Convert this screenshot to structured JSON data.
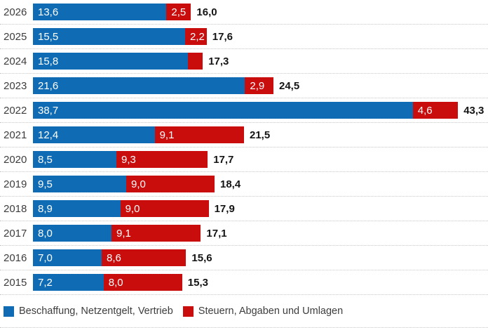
{
  "chart_data": {
    "type": "bar",
    "orientation": "horizontal",
    "stacked": true,
    "title": "",
    "xlabel": "",
    "ylabel": "",
    "grid": false,
    "legend_position": "bottom",
    "xlim": [
      0,
      46
    ],
    "categories": [
      "2026",
      "2025",
      "2024",
      "2023",
      "2022",
      "2021",
      "2020",
      "2019",
      "2018",
      "2017",
      "2016",
      "2015"
    ],
    "series": [
      {
        "name": "Beschaffung, Netzentgelt, Vertrieb",
        "color": "#0f6cb4",
        "values": [
          13.6,
          15.5,
          15.8,
          21.6,
          38.7,
          12.4,
          8.5,
          9.5,
          8.9,
          8.0,
          7.0,
          7.2
        ]
      },
      {
        "name": "Steuern, Abgaben und Umlagen",
        "color": "#c90d0d",
        "values": [
          2.5,
          2.2,
          1.5,
          2.9,
          4.6,
          9.1,
          9.3,
          9.0,
          9.0,
          9.1,
          8.6,
          8.0
        ]
      }
    ],
    "totals": [
      16.0,
      17.6,
      17.3,
      24.5,
      43.3,
      21.5,
      17.7,
      18.4,
      17.9,
      17.1,
      15.6,
      15.3
    ]
  },
  "rows": [
    {
      "year": "2026",
      "blue": 13.6,
      "red": 2.5,
      "blue_label": "13,6",
      "red_label": "2,5",
      "total_label": "16,0"
    },
    {
      "year": "2025",
      "blue": 15.5,
      "red": 2.2,
      "blue_label": "15,5",
      "red_label": "2,2",
      "total_label": "17,6"
    },
    {
      "year": "2024",
      "blue": 15.8,
      "red": 1.5,
      "blue_label": "15,8",
      "red_label": "",
      "total_label": "17,3"
    },
    {
      "year": "2023",
      "blue": 21.6,
      "red": 2.9,
      "blue_label": "21,6",
      "red_label": "2,9",
      "total_label": "24,5"
    },
    {
      "year": "2022",
      "blue": 38.7,
      "red": 4.6,
      "blue_label": "38,7",
      "red_label": "4,6",
      "total_label": "43,3"
    },
    {
      "year": "2021",
      "blue": 12.4,
      "red": 9.1,
      "blue_label": "12,4",
      "red_label": "9,1",
      "total_label": "21,5"
    },
    {
      "year": "2020",
      "blue": 8.5,
      "red": 9.3,
      "blue_label": "8,5",
      "red_label": "9,3",
      "total_label": "17,7"
    },
    {
      "year": "2019",
      "blue": 9.5,
      "red": 9.0,
      "blue_label": "9,5",
      "red_label": "9,0",
      "total_label": "18,4"
    },
    {
      "year": "2018",
      "blue": 8.9,
      "red": 9.0,
      "blue_label": "8,9",
      "red_label": "9,0",
      "total_label": "17,9"
    },
    {
      "year": "2017",
      "blue": 8.0,
      "red": 9.1,
      "blue_label": "8,0",
      "red_label": "9,1",
      "total_label": "17,1"
    },
    {
      "year": "2016",
      "blue": 7.0,
      "red": 8.6,
      "blue_label": "7,0",
      "red_label": "8,6",
      "total_label": "15,6"
    },
    {
      "year": "2015",
      "blue": 7.2,
      "red": 8.0,
      "blue_label": "7,2",
      "red_label": "8,0",
      "total_label": "15,3"
    }
  ],
  "legend": {
    "items": [
      {
        "label": "Beschaffung, Netzentgelt, Vertrieb",
        "color": "#0f6cb4"
      },
      {
        "label": "Steuern, Abgaben und Umlagen",
        "color": "#c90d0d"
      }
    ]
  }
}
